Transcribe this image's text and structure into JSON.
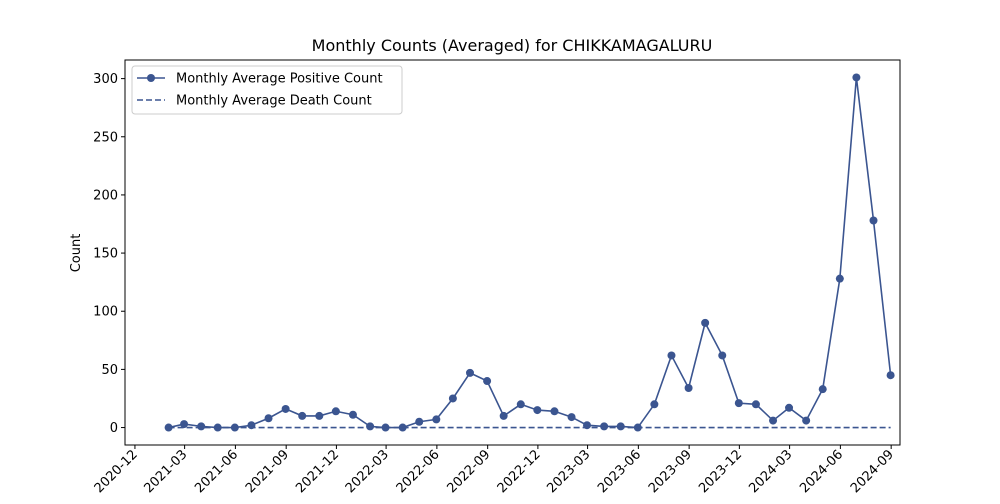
{
  "chart_data": {
    "type": "line",
    "title": "Monthly Counts (Averaged) for CHIKKAMAGALURU",
    "xlabel": "",
    "ylabel": "Count",
    "x_axis_type": "date",
    "x_range": [
      "2020-11-13",
      "2024-09-17"
    ],
    "ylim": [
      -15,
      316
    ],
    "x_ticks": [
      "2020-12",
      "2021-03",
      "2021-06",
      "2021-09",
      "2021-12",
      "2022-03",
      "2022-06",
      "2022-09",
      "2022-12",
      "2023-03",
      "2023-06",
      "2023-09",
      "2023-12",
      "2024-03",
      "2024-06",
      "2024-09"
    ],
    "y_ticks": [
      0,
      50,
      100,
      150,
      200,
      250,
      300
    ],
    "grid": false,
    "legend_position": "top-left",
    "x": [
      "2021-01-31",
      "2021-02-28",
      "2021-03-31",
      "2021-04-30",
      "2021-05-31",
      "2021-06-30",
      "2021-07-31",
      "2021-08-31",
      "2021-09-30",
      "2021-10-31",
      "2021-11-30",
      "2021-12-31",
      "2022-01-31",
      "2022-02-28",
      "2022-03-31",
      "2022-04-30",
      "2022-05-31",
      "2022-06-30",
      "2022-07-31",
      "2022-08-31",
      "2022-09-30",
      "2022-10-31",
      "2022-11-30",
      "2022-12-31",
      "2023-01-31",
      "2023-02-28",
      "2023-03-31",
      "2023-04-30",
      "2023-05-31",
      "2023-06-30",
      "2023-07-31",
      "2023-08-31",
      "2023-09-30",
      "2023-10-31",
      "2023-11-30",
      "2023-12-31",
      "2024-01-31",
      "2024-02-29",
      "2024-03-31",
      "2024-04-30",
      "2024-05-31",
      "2024-06-30",
      "2024-07-31",
      "2024-08-31"
    ],
    "series": [
      {
        "name": "Monthly Average Positive Count",
        "style": "solid-marker",
        "color": "#3b5590",
        "values": [
          0,
          3,
          1,
          0,
          0,
          2,
          8,
          16,
          10,
          10,
          14,
          11,
          1,
          0,
          0,
          5,
          7,
          25,
          47,
          40,
          10,
          20,
          15,
          14,
          9,
          2,
          1,
          1,
          0,
          20,
          62,
          34,
          90,
          62,
          21,
          20,
          6,
          17,
          6,
          33,
          128,
          301,
          178,
          45
        ]
      },
      {
        "name": "Monthly Average Death Count",
        "style": "dashed",
        "color": "#3b5590",
        "values": [
          0,
          0,
          0,
          0,
          0,
          0,
          0,
          0,
          0,
          0,
          0,
          0,
          0,
          0,
          0,
          0,
          0,
          0,
          0,
          0,
          0,
          0,
          0,
          0,
          0,
          0,
          0,
          0,
          0,
          0,
          0,
          0,
          0,
          0,
          0,
          0,
          0,
          0,
          0,
          0,
          0,
          0,
          0,
          0
        ]
      }
    ]
  }
}
